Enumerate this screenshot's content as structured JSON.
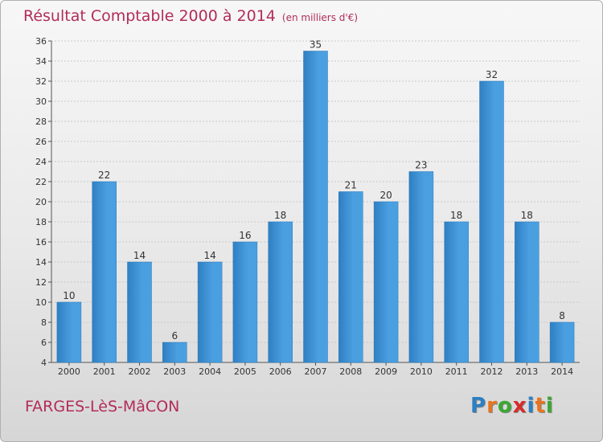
{
  "title": "Résultat Comptable 2000 à 2014",
  "subtitle": "(en milliers d'€)",
  "commune": "FARGES-LèS-MâCON",
  "logo": {
    "text": "Proxiti",
    "letters": [
      "P",
      "r",
      "o",
      "x",
      "i",
      "t",
      "i"
    ],
    "colors": [
      "#2d7fc1",
      "#e8741e",
      "#3aa832",
      "#d62b2b",
      "#2d7fc1",
      "#e8741e",
      "#3aa832"
    ]
  },
  "chart_data": {
    "type": "bar",
    "categories": [
      "2000",
      "2001",
      "2002",
      "2003",
      "2004",
      "2005",
      "2006",
      "2007",
      "2008",
      "2009",
      "2010",
      "2011",
      "2012",
      "2013",
      "2014"
    ],
    "values": [
      10,
      22,
      14,
      6,
      14,
      16,
      18,
      35,
      21,
      20,
      23,
      18,
      32,
      18,
      8
    ],
    "title": "Résultat Comptable 2000 à 2014",
    "subtitle": "(en milliers d'€)",
    "xlabel": "",
    "ylabel": "",
    "ylim": [
      4,
      36
    ],
    "yticks": [
      4,
      6,
      8,
      10,
      12,
      14,
      16,
      18,
      20,
      22,
      24,
      26,
      28,
      30,
      32,
      34,
      36
    ],
    "grid": true,
    "legend": "none",
    "bar_color": "#4a9fe0",
    "bar_color_dark": "#2f7fc2"
  }
}
